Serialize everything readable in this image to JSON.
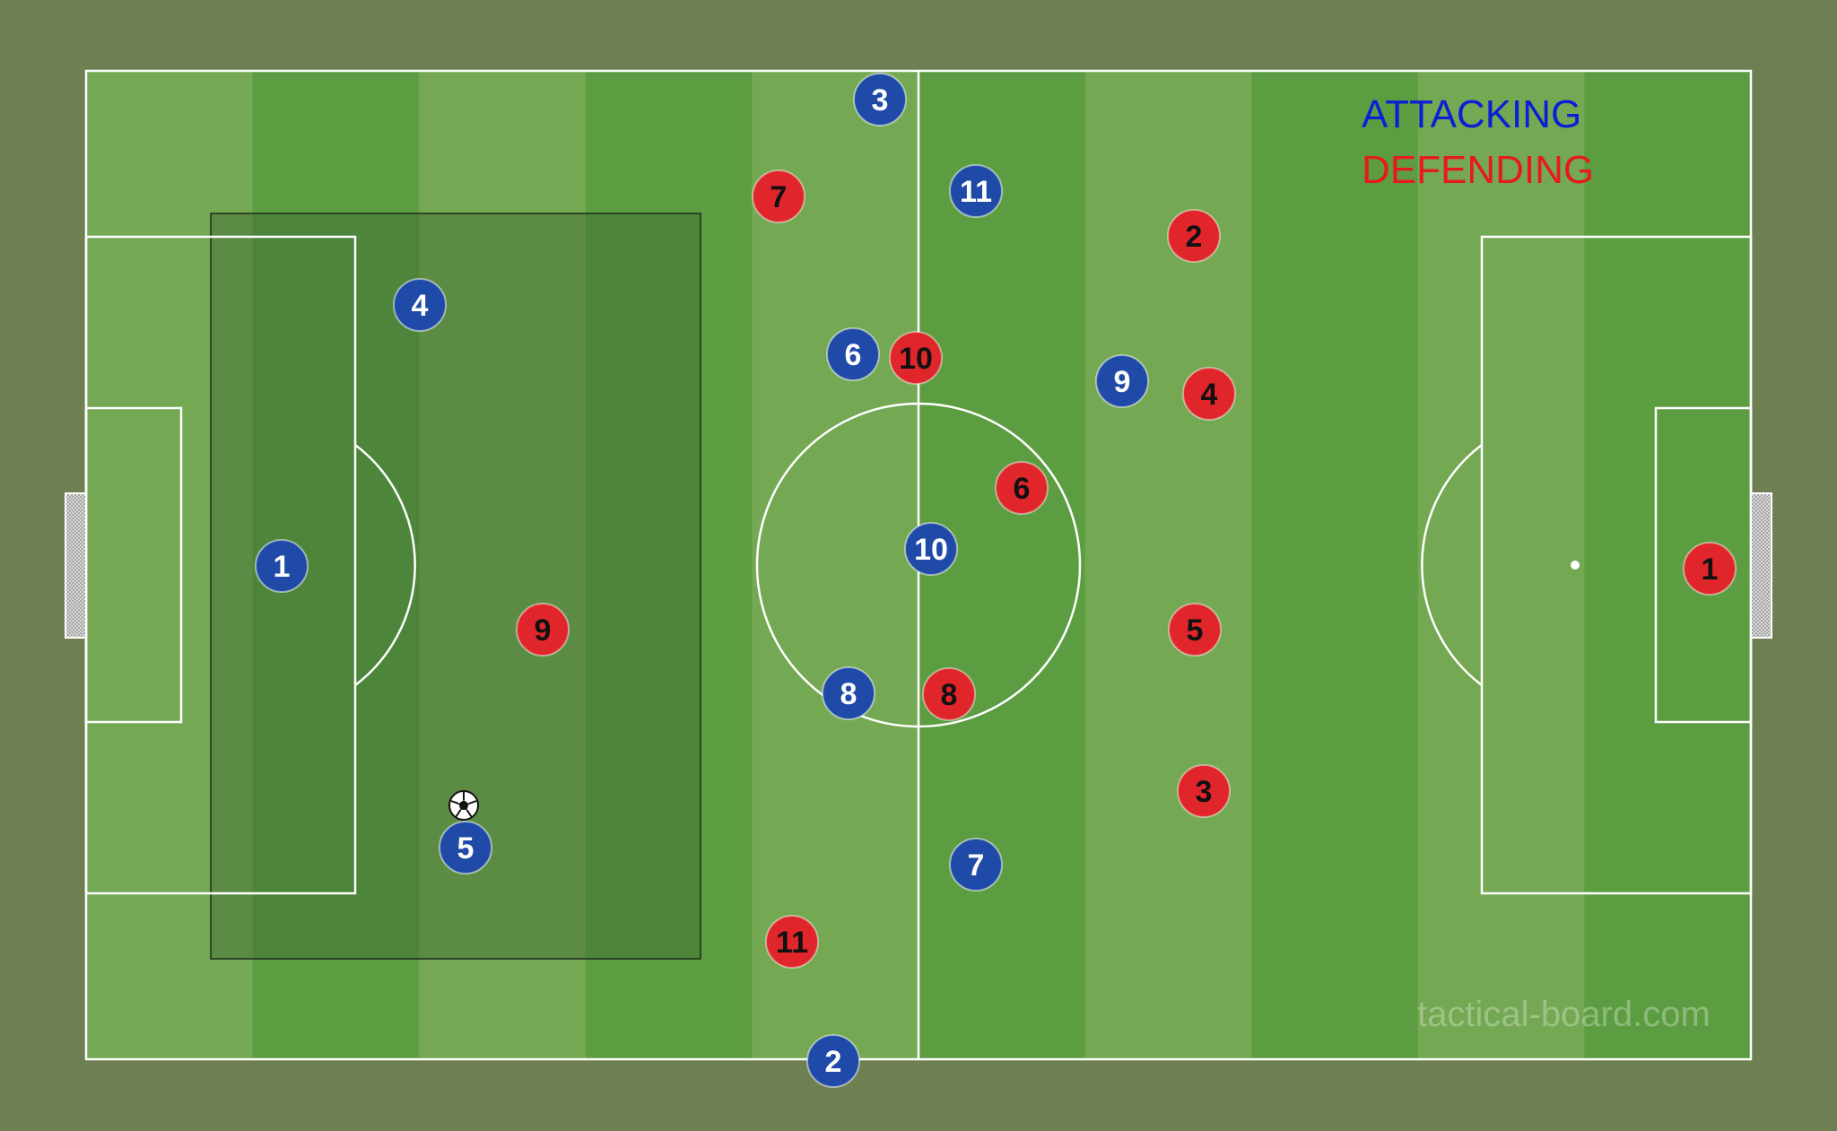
{
  "legend": {
    "attacking_label": "ATTACKING",
    "defending_label": "DEFENDING",
    "attacking_color": "#0a1fd6",
    "defending_color": "#e8191d"
  },
  "watermark": "tactical-board.com",
  "colors": {
    "background": "#6e7f52",
    "stripe_light": "#74a852",
    "stripe_dark": "#5d9d42",
    "lines": "#ffffff",
    "attacking_disc": "#1f4aa8",
    "defending_disc": "#e0262a",
    "highlight_zone": "#345e2f"
  },
  "attacking_players": [
    {
      "number": "3"
    },
    {
      "number": "11"
    },
    {
      "number": "4"
    },
    {
      "number": "6"
    },
    {
      "number": "9"
    },
    {
      "number": "1"
    },
    {
      "number": "10"
    },
    {
      "number": "8"
    },
    {
      "number": "5"
    },
    {
      "number": "7"
    },
    {
      "number": "2"
    }
  ],
  "defending_players": [
    {
      "number": "7"
    },
    {
      "number": "2"
    },
    {
      "number": "10"
    },
    {
      "number": "4"
    },
    {
      "number": "6"
    },
    {
      "number": "9"
    },
    {
      "number": "1"
    },
    {
      "number": "5"
    },
    {
      "number": "8"
    },
    {
      "number": "3"
    },
    {
      "number": "11"
    }
  ],
  "ball": {
    "icon": "soccer-ball-icon",
    "possession": "attacking player 5"
  }
}
